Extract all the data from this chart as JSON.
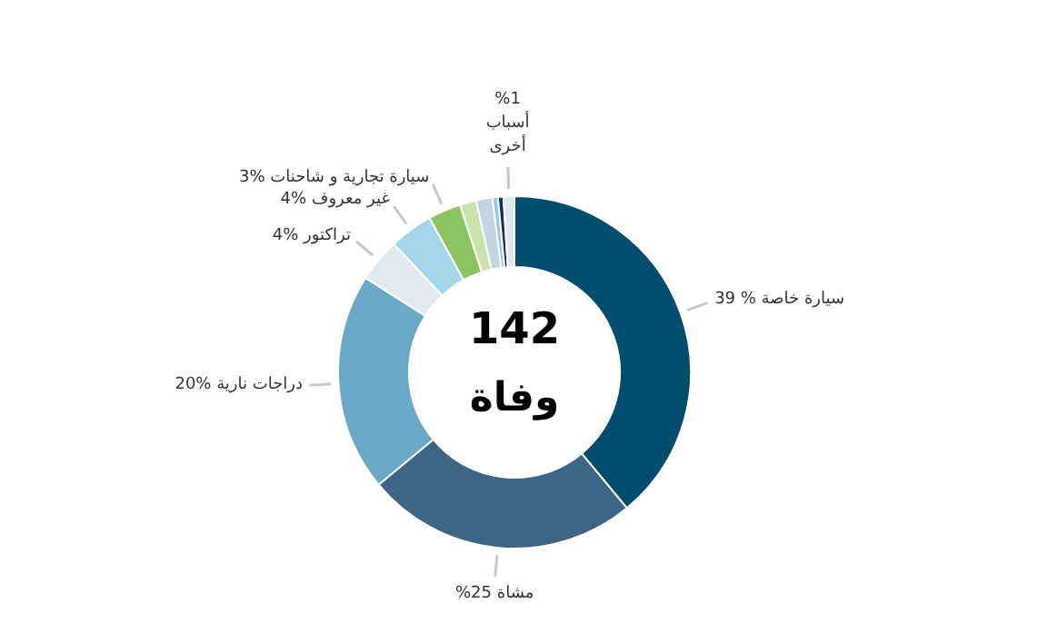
{
  "chart_data": {
    "type": "donut",
    "categories": [
      "سيارة خاصة % 39",
      "مشاة 25%",
      "دراجات نارية %20",
      "تراكتور %4",
      "غير معروف %4",
      "سيارة تجارية و شاحنات %3",
      null,
      null,
      null,
      null,
      "%1 أسباب أخرى"
    ],
    "values": [
      39,
      25,
      20,
      4,
      4,
      3,
      1.5,
      1.5,
      0.5,
      0.5,
      1
    ],
    "colors": [
      "#004d6e",
      "#3d6585",
      "#6aa9c7",
      "#e2eaef",
      "#a6d6ec",
      "#8cc462",
      "#c9e3ae",
      "#c5d5df",
      "#8ecae6",
      "#1f2a6b",
      "#dce8f2"
    ],
    "annotations": [
      "142",
      "وفاة"
    ]
  }
}
